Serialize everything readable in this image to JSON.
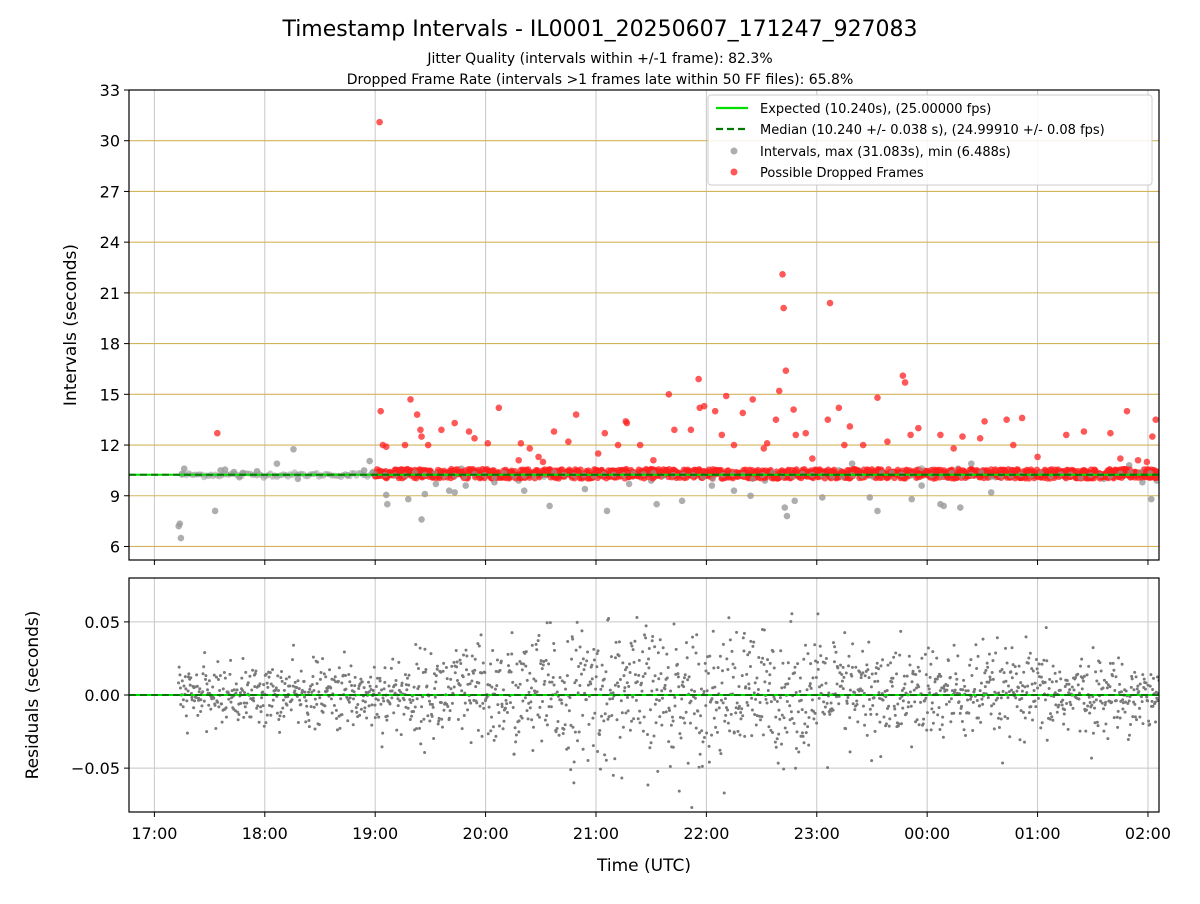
{
  "chart_data": [
    {
      "type": "scatter",
      "title": "Timestamp Intervals - IL0001_20250607_171247_927083",
      "subtitle_lines": [
        "Jitter Quality (intervals within +/-1 frame): 82.3%",
        "Dropped Frame Rate (intervals >1 frames late within 50 FF files): 65.8%"
      ],
      "ylabel": "Intervals (seconds)",
      "xlabel": "",
      "x_start": "17:00",
      "xlim_hours": [
        16.77,
        26.1
      ],
      "ylim": [
        5.2,
        33.0
      ],
      "yticks": [
        6,
        9,
        12,
        15,
        18,
        21,
        24,
        27,
        30,
        33
      ],
      "ytick_labels": [
        "6",
        "9",
        "12",
        "15",
        "18",
        "21",
        "24",
        "27",
        "30",
        "33"
      ],
      "grid": "both",
      "ygrid_color": "#d4b45a",
      "legend_position": "top-right",
      "legend": [
        {
          "label": "Expected (10.240s), (25.00000 fps)",
          "style": "solid-line",
          "color": "#00e000"
        },
        {
          "label": "Median (10.240 +/- 0.038 s), (24.99910 +/- 0.08 fps)",
          "style": "dashed-line",
          "color": "#007a00"
        },
        {
          "label": "Intervals, max (31.083s), min (6.488s)",
          "style": "marker",
          "color": "#9a9a9a"
        },
        {
          "label": "Possible Dropped Frames",
          "style": "marker",
          "color": "#ff2020"
        }
      ],
      "expected_interval": 10.24,
      "median_interval": 10.24,
      "series": [
        {
          "name": "Intervals, max (31.083s), min (6.488s)",
          "color": "#9a9a9a",
          "x_hours": [
            17.22,
            17.23,
            17.24,
            17.25,
            17.27,
            17.55,
            17.6,
            17.64,
            17.72,
            17.77,
            17.8,
            17.93,
            18.11,
            18.26,
            18.3,
            18.75,
            18.9,
            18.95,
            18.98,
            19.1,
            19.11,
            19.22,
            19.3,
            19.42,
            19.45,
            19.55,
            19.67,
            19.72,
            19.78,
            19.82,
            20.08,
            20.3,
            20.35,
            20.58,
            20.9,
            21.05,
            21.1,
            21.3,
            21.42,
            21.5,
            21.55,
            21.62,
            21.78,
            21.95,
            22.05,
            22.25,
            22.4,
            22.44,
            22.53,
            22.71,
            22.73,
            22.8,
            23.05,
            23.2,
            23.32,
            23.38,
            23.48,
            23.55,
            23.75,
            23.8,
            23.86,
            23.92,
            23.95,
            23.97,
            24.12,
            24.15,
            24.28,
            24.3,
            24.4,
            24.58,
            24.62,
            24.76,
            25.03,
            25.15,
            25.25,
            25.48,
            25.6,
            25.83,
            25.88,
            25.95,
            26.0,
            26.03,
            26.08
          ],
          "y": [
            7.2,
            7.35,
            6.5,
            10.3,
            10.6,
            8.1,
            10.5,
            10.55,
            10.4,
            10.1,
            10.35,
            10.45,
            10.9,
            11.75,
            10.0,
            10.2,
            10.5,
            11.05,
            10.4,
            9.05,
            8.5,
            10.5,
            8.8,
            7.6,
            9.1,
            9.7,
            9.3,
            9.2,
            10.6,
            9.6,
            9.8,
            9.9,
            9.3,
            8.4,
            9.4,
            10.5,
            8.1,
            9.7,
            10.4,
            9.9,
            8.5,
            10.3,
            8.7,
            10.1,
            9.6,
            9.3,
            9.0,
            10.2,
            9.9,
            8.3,
            7.8,
            8.7,
            8.9,
            10.5,
            10.9,
            10.5,
            8.9,
            8.1,
            10.2,
            10.1,
            8.8,
            10.1,
            9.6,
            10.3,
            8.5,
            8.4,
            10.6,
            8.3,
            10.9,
            9.2,
            10.1,
            10.5,
            10.1,
            10.3,
            10.1,
            10.1,
            10.0,
            10.8,
            10.4,
            9.8,
            10.5,
            8.8,
            9.9
          ]
        },
        {
          "name": "Possible Dropped Frames",
          "color": "#ff2020",
          "dense_band": {
            "x_start_hours": 19.0,
            "x_end_hours": 26.1,
            "y_min": 10.02,
            "y_max": 10.58
          },
          "x_hours": [
            19.04,
            17.57,
            19.05,
            19.07,
            19.1,
            19.27,
            19.32,
            19.38,
            19.41,
            19.42,
            19.48,
            19.6,
            19.72,
            19.85,
            19.9,
            20.02,
            20.12,
            20.3,
            20.32,
            20.4,
            20.48,
            20.52,
            20.62,
            20.75,
            20.82,
            21.02,
            21.08,
            21.2,
            21.27,
            21.28,
            21.4,
            21.52,
            21.66,
            21.71,
            21.86,
            21.93,
            21.94,
            21.98,
            22.08,
            22.14,
            22.18,
            22.25,
            22.33,
            22.42,
            22.52,
            22.55,
            22.63,
            22.66,
            22.69,
            22.7,
            22.72,
            22.79,
            22.81,
            22.9,
            22.96,
            23.1,
            23.12,
            23.2,
            23.25,
            23.3,
            23.42,
            23.55,
            23.64,
            23.78,
            23.8,
            23.85,
            23.92,
            24.12,
            24.24,
            24.32,
            24.48,
            24.52,
            24.72,
            24.78,
            24.86,
            25.0,
            25.26,
            25.42,
            25.66,
            25.75,
            25.81,
            25.91,
            25.99,
            26.04,
            26.07
          ],
          "y": [
            31.1,
            12.7,
            14.0,
            12.0,
            11.9,
            12.0,
            14.7,
            13.8,
            12.9,
            12.5,
            12.0,
            12.9,
            13.3,
            12.8,
            12.4,
            12.1,
            14.2,
            11.1,
            12.1,
            11.8,
            11.3,
            11.0,
            12.8,
            12.2,
            13.8,
            11.5,
            12.7,
            12.0,
            13.4,
            13.3,
            12.0,
            11.1,
            15.0,
            12.9,
            12.9,
            15.9,
            14.2,
            14.3,
            14.0,
            12.6,
            14.9,
            12.0,
            13.9,
            14.7,
            11.8,
            12.1,
            13.5,
            15.2,
            22.1,
            20.1,
            16.4,
            14.1,
            12.6,
            12.7,
            11.2,
            13.5,
            20.4,
            14.2,
            12.0,
            13.1,
            12.0,
            14.8,
            12.2,
            16.1,
            15.7,
            12.6,
            13.0,
            12.6,
            11.8,
            12.5,
            12.4,
            13.4,
            13.5,
            12.0,
            13.6,
            11.3,
            12.6,
            12.8,
            12.7,
            11.2,
            14.0,
            11.1,
            11.0,
            12.5,
            13.5
          ]
        }
      ]
    },
    {
      "type": "scatter",
      "title": "",
      "ylabel": "Residuals (seconds)",
      "xlabel": "Time (UTC)",
      "x_start": "17:00",
      "xlim_hours": [
        16.77,
        26.1
      ],
      "ylim": [
        -0.08,
        0.08
      ],
      "yticks": [
        -0.05,
        0.0,
        0.05
      ],
      "ytick_labels": [
        "−0.05",
        "0.00",
        "0.05"
      ],
      "xticks_hours": [
        17,
        18,
        19,
        20,
        21,
        22,
        23,
        24,
        25,
        26
      ],
      "xtick_labels": [
        "17:00",
        "18:00",
        "19:00",
        "20:00",
        "21:00",
        "22:00",
        "23:00",
        "00:00",
        "01:00",
        "02:00"
      ],
      "grid": "both",
      "zero_line_color": "#00e000",
      "series": [
        {
          "name": "",
          "color": "#7a7a7a",
          "x_start_hours": 17.22,
          "x_end_hours": 26.1,
          "point_count": 1800,
          "sigma_profile": [
            {
              "x_hours": 17.2,
              "sigma": 0.012
            },
            {
              "x_hours": 19.0,
              "sigma": 0.016
            },
            {
              "x_hours": 20.0,
              "sigma": 0.025
            },
            {
              "x_hours": 21.0,
              "sigma": 0.032
            },
            {
              "x_hours": 22.5,
              "sigma": 0.03
            },
            {
              "x_hours": 24.0,
              "sigma": 0.022
            },
            {
              "x_hours": 25.0,
              "sigma": 0.02
            },
            {
              "x_hours": 26.1,
              "sigma": 0.014
            }
          ]
        }
      ]
    }
  ]
}
